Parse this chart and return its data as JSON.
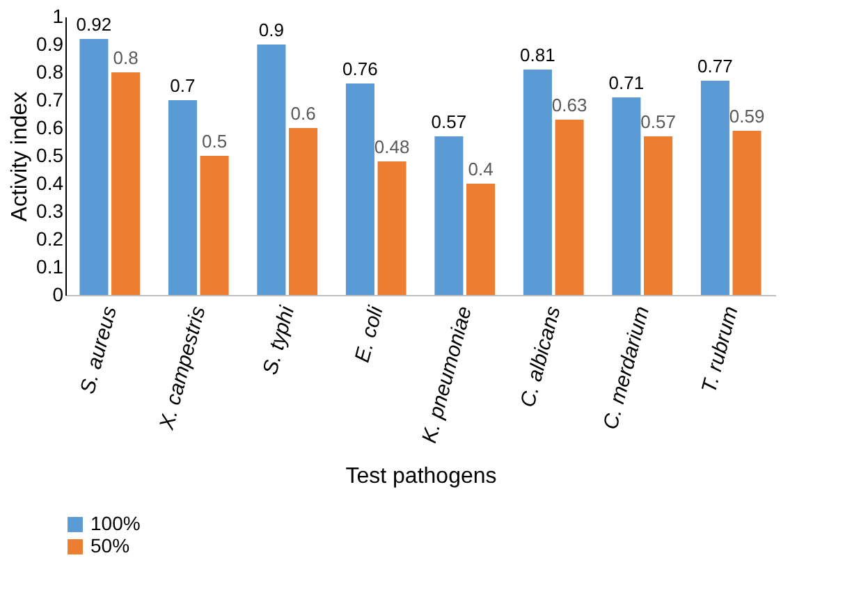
{
  "chart_data": {
    "type": "bar",
    "xlabel": "Test pathogens",
    "ylabel": "Activity index",
    "categories": [
      "S. aureus",
      "X. campestris",
      "S. typhi",
      "E. coli",
      "K. pneumoniae",
      "C. albicans",
      "C. merdarium",
      "T. rubrum"
    ],
    "series": [
      {
        "name": "100%",
        "color": "#5b9bd5",
        "values": [
          0.92,
          0.7,
          0.9,
          0.76,
          0.57,
          0.81,
          0.71,
          0.77
        ]
      },
      {
        "name": "50%",
        "color": "#ed7d31",
        "values": [
          0.8,
          0.5,
          0.6,
          0.48,
          0.4,
          0.63,
          0.57,
          0.59
        ]
      }
    ],
    "ylim": [
      0,
      1
    ],
    "yticks": [
      0,
      0.1,
      0.2,
      0.3,
      0.4,
      0.5,
      0.6,
      0.7,
      0.8,
      0.9,
      1
    ],
    "data_labels": true,
    "grid": false,
    "legend": "bottom left"
  }
}
